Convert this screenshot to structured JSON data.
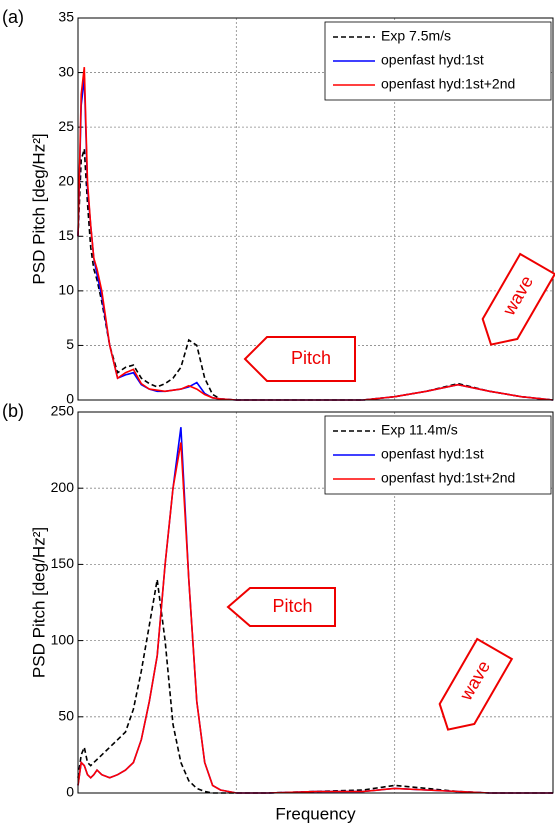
{
  "chart_data": [
    {
      "type": "line",
      "panel_label": "(a)",
      "y_label": "PSD Pitch [deg/Hz²]",
      "x": [
        0,
        0.02,
        0.04,
        0.06,
        0.08,
        0.1,
        0.12,
        0.15,
        0.2,
        0.25,
        0.3,
        0.35,
        0.4,
        0.45,
        0.5,
        0.55,
        0.6,
        0.65,
        0.7,
        0.75,
        0.8,
        0.85,
        0.9,
        1.0,
        1.2,
        1.5,
        1.8,
        2.0,
        2.2,
        2.4,
        2.6,
        2.8,
        3.0
      ],
      "xlim": [
        0,
        3
      ],
      "xticks": [
        1,
        2
      ],
      "ylim": [
        0,
        35
      ],
      "yticks": [
        0,
        5,
        10,
        15,
        20,
        25,
        30,
        35
      ],
      "grid": true,
      "legend": "upper right",
      "series": [
        {
          "name": "Exp 7.5m/s",
          "color": "#000000",
          "linestyle": "dashed",
          "values": [
            15,
            22,
            23,
            18,
            14,
            12,
            11,
            9,
            5,
            2.5,
            3,
            3.2,
            2,
            1.5,
            1.2,
            1.5,
            2,
            3,
            5.5,
            5,
            2,
            0.5,
            0.1,
            0,
            0,
            0,
            0,
            0.3,
            0.8,
            1.5,
            0.8,
            0.3,
            0
          ]
        },
        {
          "name": "openfast hyd:1st",
          "color": "#0000ff",
          "linestyle": "solid",
          "values": [
            15,
            27,
            29.5,
            19.5,
            16,
            13,
            11.5,
            9.5,
            5,
            2,
            2.3,
            2.5,
            1.4,
            1,
            0.8,
            0.8,
            0.9,
            1,
            1.2,
            1.6,
            0.6,
            0.2,
            0.1,
            0,
            0,
            0,
            0,
            0.3,
            0.8,
            1.4,
            0.8,
            0.3,
            0
          ]
        },
        {
          "name": "openfast hyd:1st+2nd",
          "color": "#ff0000",
          "linestyle": "solid",
          "values": [
            15,
            28,
            30.5,
            20,
            16,
            13,
            12,
            10,
            5,
            2,
            2.5,
            2.8,
            1.5,
            1,
            0.9,
            0.8,
            0.9,
            1,
            1.3,
            1,
            0.5,
            0.2,
            0.1,
            0,
            0,
            0,
            0,
            0.3,
            0.8,
            1.4,
            0.8,
            0.3,
            0
          ]
        }
      ],
      "annotations": [
        "Pitch",
        "wave"
      ]
    },
    {
      "type": "line",
      "panel_label": "(b)",
      "y_label": "PSD Pitch [deg/Hz²]",
      "x_label": "Frequency",
      "x": [
        0,
        0.02,
        0.04,
        0.06,
        0.08,
        0.1,
        0.12,
        0.15,
        0.2,
        0.25,
        0.3,
        0.35,
        0.4,
        0.45,
        0.5,
        0.55,
        0.6,
        0.65,
        0.7,
        0.75,
        0.8,
        0.85,
        0.9,
        1.0,
        1.2,
        1.5,
        1.8,
        2.0,
        2.2,
        2.4,
        2.6,
        2.8,
        3.0
      ],
      "xlim": [
        0,
        3
      ],
      "xticks": [
        1,
        2
      ],
      "ylim": [
        0,
        250
      ],
      "yticks": [
        0,
        50,
        100,
        150,
        200,
        250
      ],
      "grid": true,
      "legend": "upper right",
      "series": [
        {
          "name": "Exp 11.4m/s",
          "color": "#000000",
          "linestyle": "dashed",
          "values": [
            10,
            25,
            30,
            20,
            18,
            20,
            22,
            25,
            30,
            35,
            40,
            55,
            80,
            110,
            140,
            100,
            45,
            20,
            8,
            3,
            1,
            0,
            0,
            0,
            0,
            1,
            2,
            5,
            3,
            1,
            0,
            0,
            0
          ]
        },
        {
          "name": "openfast hyd:1st",
          "color": "#0000ff",
          "linestyle": "solid",
          "values": [
            5,
            20,
            18,
            12,
            10,
            12,
            15,
            12,
            10,
            12,
            15,
            20,
            35,
            60,
            90,
            150,
            200,
            240,
            140,
            60,
            20,
            5,
            2,
            0,
            0,
            1,
            1,
            3,
            2,
            1,
            0,
            0,
            0
          ]
        },
        {
          "name": "openfast hyd:1st+2nd",
          "color": "#ff0000",
          "linestyle": "solid",
          "values": [
            5,
            20,
            18,
            12,
            10,
            12,
            15,
            12,
            10,
            12,
            15,
            20,
            35,
            60,
            90,
            150,
            200,
            230,
            140,
            60,
            20,
            5,
            2,
            0,
            0,
            1,
            1,
            3,
            2,
            1,
            0,
            0,
            0
          ]
        }
      ],
      "annotations": [
        "Pitch",
        "wave"
      ]
    }
  ]
}
